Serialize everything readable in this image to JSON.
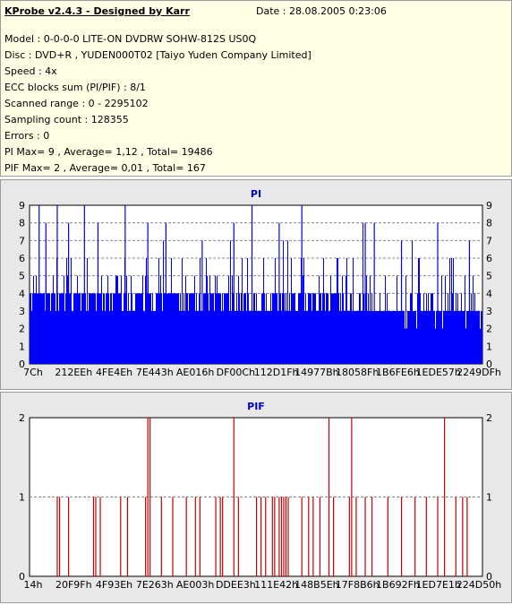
{
  "header": {
    "title": "KProbe v2.4.3 - Designed by Karr",
    "date": "Date : 28.08.2005 0:23:06",
    "lines": [
      "Model : 0-0-0-0 LITE-ON DVDRW SOHW-812S  US0Q",
      "Disc : DVD+R , YUDEN000T02 [Taiyo Yuden Company Limited]",
      "Speed : 4x",
      "ECC blocks sum (PI/PIF) : 8/1",
      "Scanned range : 0 - 2295102",
      "Sampling count : 128355",
      "Errors : 0",
      "PI Max= 9 , Average= 1,12 , Total= 19486",
      "PIF Max= 2 , Average= 0,01 , Total= 167"
    ]
  },
  "colors": {
    "pi": "#0000ff",
    "pif": "#cc0000",
    "title": "#0000cc",
    "plot_bg": "#ffffff"
  },
  "chart_data": [
    {
      "type": "bar",
      "title": "PI",
      "ylim": [
        0,
        9
      ],
      "yticks": [
        0,
        1,
        2,
        3,
        4,
        5,
        6,
        7,
        8,
        9
      ],
      "grid": true,
      "xlabels": [
        "7Ch",
        "212EEh",
        "4FE4Eh",
        "7E443h",
        "AE016h",
        "DF00Ch",
        "112D1Fh",
        "14977Bh",
        "18058Fh",
        "1B6FE6h",
        "1EDE57h",
        "2249DFh"
      ],
      "baseline_note": "dense bars, typical PI 3-4, peaks up to 9",
      "peaks": [
        {
          "pos": 0.02,
          "value": 9
        },
        {
          "pos": 0.035,
          "value": 8
        },
        {
          "pos": 0.06,
          "value": 9
        },
        {
          "pos": 0.085,
          "value": 8
        },
        {
          "pos": 0.12,
          "value": 9
        },
        {
          "pos": 0.15,
          "value": 8
        },
        {
          "pos": 0.21,
          "value": 9
        },
        {
          "pos": 0.26,
          "value": 8
        },
        {
          "pos": 0.3,
          "value": 8
        },
        {
          "pos": 0.38,
          "value": 7
        },
        {
          "pos": 0.45,
          "value": 8
        },
        {
          "pos": 0.49,
          "value": 9
        },
        {
          "pos": 0.55,
          "value": 8
        },
        {
          "pos": 0.6,
          "value": 9
        },
        {
          "pos": 0.74,
          "value": 8
        },
        {
          "pos": 0.76,
          "value": 8
        },
        {
          "pos": 0.82,
          "value": 7
        },
        {
          "pos": 0.9,
          "value": 8
        },
        {
          "pos": 0.97,
          "value": 7
        }
      ]
    },
    {
      "type": "bar",
      "title": "PIF",
      "ylim": [
        0,
        2
      ],
      "yticks": [
        0,
        1,
        2
      ],
      "grid": true,
      "xlabels": [
        "14h",
        "20F9Fh",
        "4F93Eh",
        "7E263h",
        "AE003h",
        "DDEE3h",
        "111E42h",
        "148B5Eh",
        "17F8B6h",
        "1B692Fh",
        "1ED7E1h",
        "224D50h"
      ],
      "bars": [
        {
          "pos": 0.06,
          "value": 1
        },
        {
          "pos": 0.065,
          "value": 1
        },
        {
          "pos": 0.085,
          "value": 1
        },
        {
          "pos": 0.14,
          "value": 1
        },
        {
          "pos": 0.145,
          "value": 1
        },
        {
          "pos": 0.155,
          "value": 1
        },
        {
          "pos": 0.2,
          "value": 1
        },
        {
          "pos": 0.215,
          "value": 1
        },
        {
          "pos": 0.255,
          "value": 1
        },
        {
          "pos": 0.26,
          "value": 2
        },
        {
          "pos": 0.265,
          "value": 2
        },
        {
          "pos": 0.29,
          "value": 1
        },
        {
          "pos": 0.315,
          "value": 1
        },
        {
          "pos": 0.345,
          "value": 1
        },
        {
          "pos": 0.365,
          "value": 1
        },
        {
          "pos": 0.375,
          "value": 1
        },
        {
          "pos": 0.41,
          "value": 1
        },
        {
          "pos": 0.42,
          "value": 1
        },
        {
          "pos": 0.425,
          "value": 1
        },
        {
          "pos": 0.45,
          "value": 2
        },
        {
          "pos": 0.46,
          "value": 1
        },
        {
          "pos": 0.5,
          "value": 1
        },
        {
          "pos": 0.51,
          "value": 1
        },
        {
          "pos": 0.52,
          "value": 1
        },
        {
          "pos": 0.535,
          "value": 1
        },
        {
          "pos": 0.54,
          "value": 1
        },
        {
          "pos": 0.55,
          "value": 1
        },
        {
          "pos": 0.555,
          "value": 1
        },
        {
          "pos": 0.56,
          "value": 1
        },
        {
          "pos": 0.565,
          "value": 1
        },
        {
          "pos": 0.57,
          "value": 1
        },
        {
          "pos": 0.6,
          "value": 1
        },
        {
          "pos": 0.615,
          "value": 1
        },
        {
          "pos": 0.625,
          "value": 1
        },
        {
          "pos": 0.64,
          "value": 1
        },
        {
          "pos": 0.66,
          "value": 2
        },
        {
          "pos": 0.67,
          "value": 1
        },
        {
          "pos": 0.705,
          "value": 1
        },
        {
          "pos": 0.71,
          "value": 2
        },
        {
          "pos": 0.72,
          "value": 1
        },
        {
          "pos": 0.74,
          "value": 1
        },
        {
          "pos": 0.755,
          "value": 1
        },
        {
          "pos": 0.79,
          "value": 1
        },
        {
          "pos": 0.82,
          "value": 1
        },
        {
          "pos": 0.85,
          "value": 1
        },
        {
          "pos": 0.875,
          "value": 1
        },
        {
          "pos": 0.9,
          "value": 1
        },
        {
          "pos": 0.915,
          "value": 2
        },
        {
          "pos": 0.94,
          "value": 1
        },
        {
          "pos": 0.955,
          "value": 1
        },
        {
          "pos": 0.965,
          "value": 1
        }
      ]
    }
  ]
}
